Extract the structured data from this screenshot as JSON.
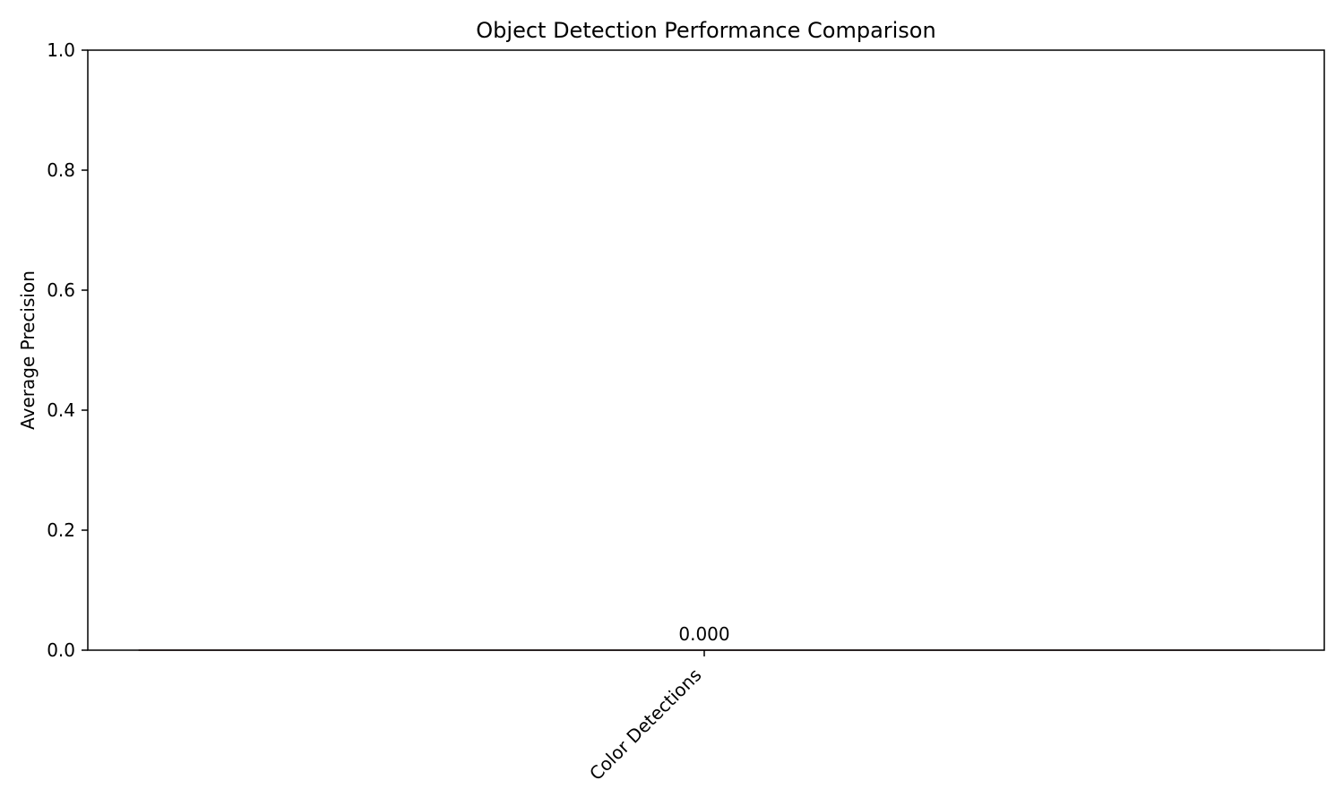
{
  "chart_data": {
    "type": "bar",
    "title": "Object Detection Performance Comparison",
    "xlabel": "",
    "ylabel": "Average Precision",
    "categories": [
      "Color Detections"
    ],
    "values": [
      0.0
    ],
    "value_labels": [
      "0.000"
    ],
    "ylim": [
      0,
      1.0
    ],
    "yticks": [
      0.0,
      0.2,
      0.4,
      0.6,
      0.8,
      1.0
    ],
    "ytick_labels": [
      "0.0",
      "0.2",
      "0.4",
      "0.6",
      "0.8",
      "1.0"
    ],
    "xtick_rotation": "45 degrees",
    "grid": false,
    "bar_color": "#d62728",
    "bar_edge_color": "#000000"
  }
}
